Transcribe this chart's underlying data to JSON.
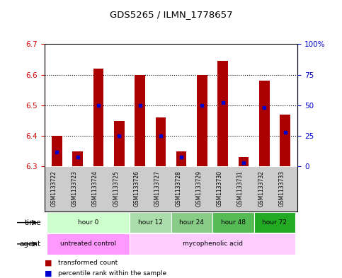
{
  "title": "GDS5265 / ILMN_1778657",
  "samples": [
    "GSM1133722",
    "GSM1133723",
    "GSM1133724",
    "GSM1133725",
    "GSM1133726",
    "GSM1133727",
    "GSM1133728",
    "GSM1133729",
    "GSM1133730",
    "GSM1133731",
    "GSM1133732",
    "GSM1133733"
  ],
  "bar_top": [
    6.4,
    6.35,
    6.62,
    6.45,
    6.6,
    6.46,
    6.35,
    6.6,
    6.645,
    6.33,
    6.58,
    6.47
  ],
  "bar_bottom": 6.3,
  "percentile": [
    12,
    8,
    50,
    25,
    50,
    25,
    8,
    50,
    52,
    3,
    48,
    28
  ],
  "ylim": [
    6.3,
    6.7
  ],
  "yticks_left": [
    6.3,
    6.4,
    6.5,
    6.6,
    6.7
  ],
  "yticks_right": [
    0,
    25,
    50,
    75,
    100
  ],
  "bar_color": "#aa0000",
  "percentile_color": "#0000cc",
  "time_colors": [
    "#ccffcc",
    "#aaddaa",
    "#88cc88",
    "#55bb55",
    "#22aa22"
  ],
  "time_groups": [
    {
      "label": "hour 0",
      "start": 0,
      "end": 4
    },
    {
      "label": "hour 12",
      "start": 4,
      "end": 6
    },
    {
      "label": "hour 24",
      "start": 6,
      "end": 8
    },
    {
      "label": "hour 48",
      "start": 8,
      "end": 10
    },
    {
      "label": "hour 72",
      "start": 10,
      "end": 12
    }
  ],
  "agent_colors": [
    "#ff99ff",
    "#ffccff"
  ],
  "agent_groups": [
    {
      "label": "untreated control",
      "start": 0,
      "end": 4
    },
    {
      "label": "mycophenolic acid",
      "start": 4,
      "end": 12
    }
  ],
  "legend_items": [
    {
      "label": "transformed count",
      "color": "#aa0000"
    },
    {
      "label": "percentile rank within the sample",
      "color": "#0000cc"
    }
  ],
  "xlabel_time": "time",
  "xlabel_agent": "agent",
  "left_label_color": "#cc0000",
  "right_label_color": "#0000cc",
  "title_color": "#000000",
  "sample_bg_color": "#cccccc",
  "plot_bg_color": "#ffffff"
}
